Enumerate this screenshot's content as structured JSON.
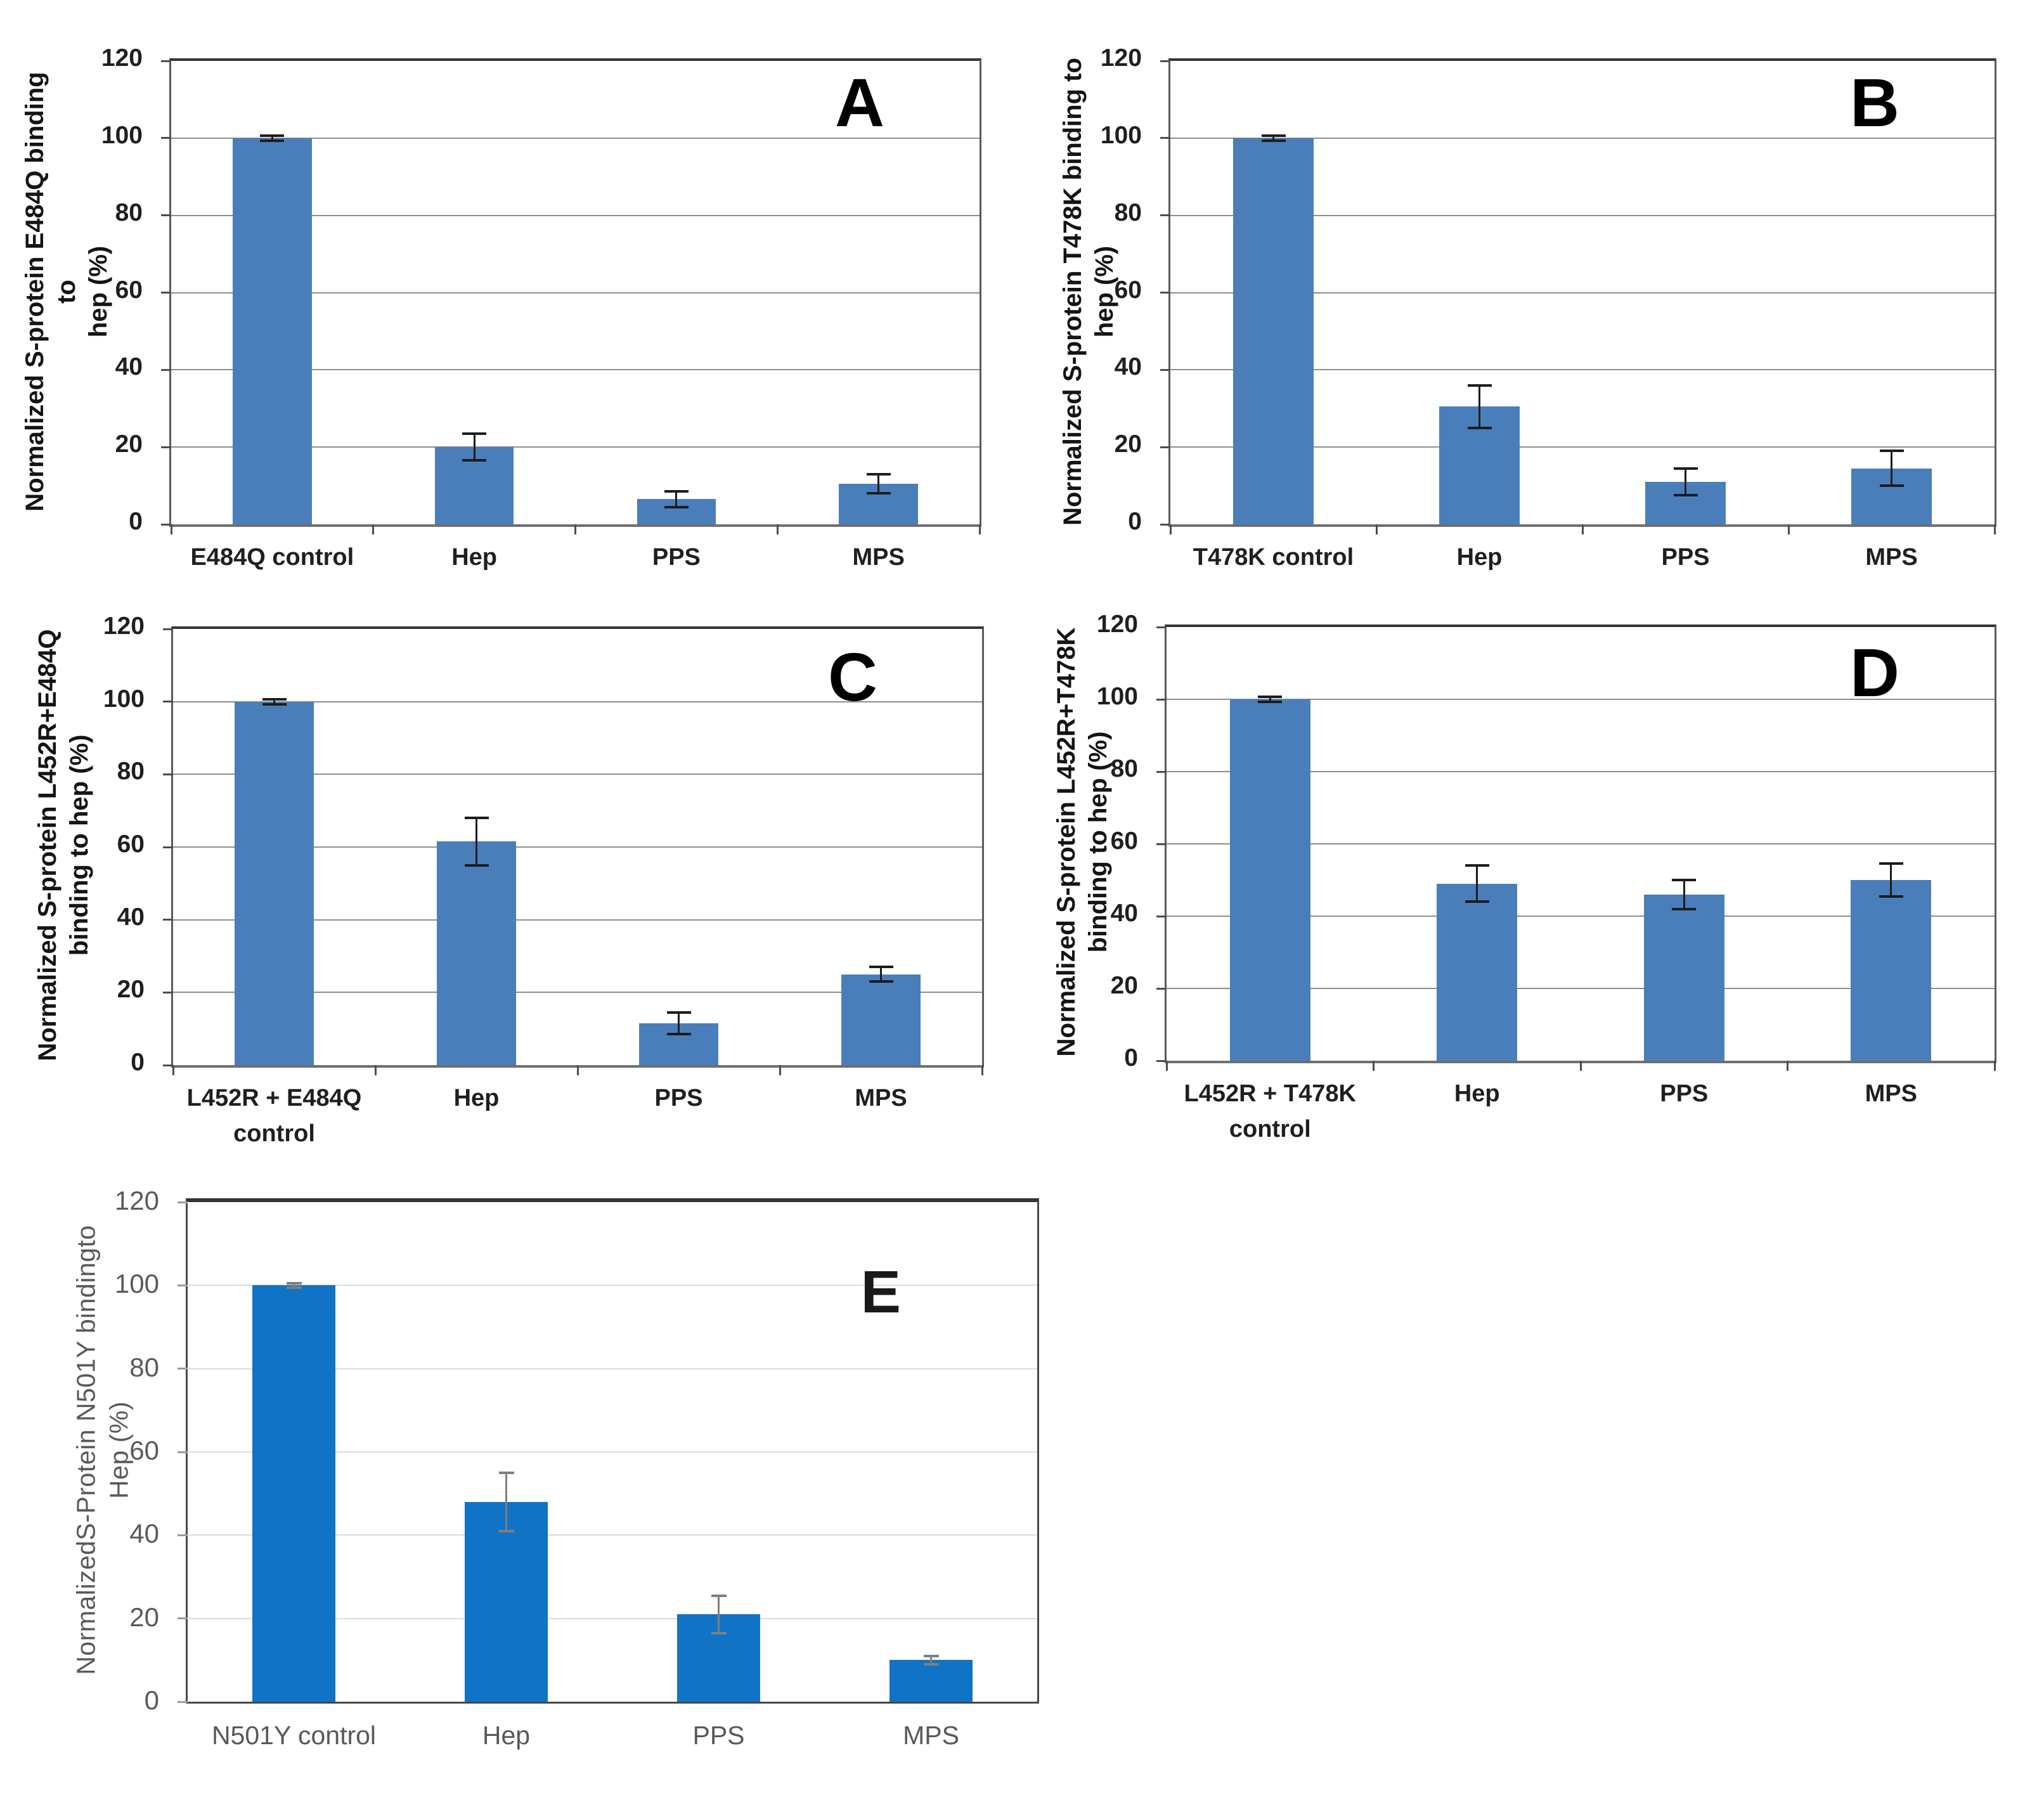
{
  "chart_data": [
    {
      "id": "A",
      "type": "bar",
      "panel_label": "A",
      "ylabel": "Normalized S-protein E484Q binding to hep (%)",
      "ylabel_lines": [
        "Normalized S-protein E484Q binding to",
        "hep (%)"
      ],
      "categories": [
        "E484Q control",
        "Hep",
        "PPS",
        "MPS"
      ],
      "values": [
        100,
        20,
        6.5,
        10.5
      ],
      "errors": [
        0.7,
        3.5,
        2,
        2.5
      ],
      "ylim": [
        0,
        120
      ],
      "yticks": [
        0,
        20,
        40,
        60,
        80,
        100,
        120
      ],
      "grid": true,
      "legend": "none",
      "style": "classic"
    },
    {
      "id": "B",
      "type": "bar",
      "panel_label": "B",
      "ylabel": "Normalized S-protein T478K binding to hep (%)",
      "ylabel_lines": [
        "Normalized S-protein T478K  binding to",
        "hep (%)"
      ],
      "categories": [
        "T478K control",
        "Hep",
        "PPS",
        "MPS"
      ],
      "values": [
        100,
        30.5,
        11,
        14.5
      ],
      "errors": [
        0.7,
        5.5,
        3.5,
        4.5
      ],
      "ylim": [
        0,
        120
      ],
      "yticks": [
        0,
        20,
        40,
        60,
        80,
        100,
        120
      ],
      "grid": true,
      "legend": "none",
      "style": "classic"
    },
    {
      "id": "C",
      "type": "bar",
      "panel_label": "C",
      "ylabel": "Normalized S-protein L452R+E484Q binding to hep (%)",
      "ylabel_lines": [
        "Normalized S-protein L452R+E484Q",
        "binding to hep (%)"
      ],
      "categories": [
        "L452R + E484Q\ncontrol",
        "Hep",
        "PPS",
        "MPS"
      ],
      "values": [
        100,
        61.5,
        11.5,
        25
      ],
      "errors": [
        0.7,
        6.5,
        3,
        2
      ],
      "ylim": [
        0,
        120
      ],
      "yticks": [
        0,
        20,
        40,
        60,
        80,
        100,
        120
      ],
      "grid": true,
      "legend": "none",
      "style": "classic"
    },
    {
      "id": "D",
      "type": "bar",
      "panel_label": "D",
      "ylabel": "Normalized S-protein L452R+T478K binding to hep (%)",
      "ylabel_lines": [
        "Normalized S-protein  L452R+T478K",
        "binding to hep (%)"
      ],
      "categories": [
        "L452R + T478K\ncontrol",
        "Hep",
        "PPS",
        "MPS"
      ],
      "values": [
        100,
        49,
        46,
        50
      ],
      "errors": [
        0.7,
        5,
        4,
        4.5
      ],
      "ylim": [
        0,
        120
      ],
      "yticks": [
        0,
        20,
        40,
        60,
        80,
        100,
        120
      ],
      "grid": true,
      "legend": "none",
      "style": "classic"
    },
    {
      "id": "E",
      "type": "bar",
      "panel_label": "E",
      "ylabel": "NormalizedS-Protein N501Y  bindingto Hep (%)",
      "ylabel_lines": [
        "NormalizedS-Protein N501Y  bindingto",
        "Hep (%)"
      ],
      "categories": [
        "N501Y control",
        "Hep",
        "PPS",
        "MPS"
      ],
      "values": [
        100,
        48,
        21,
        10
      ],
      "errors": [
        0.5,
        7,
        4.5,
        1
      ],
      "ylim": [
        0,
        120
      ],
      "yticks": [
        0,
        20,
        40,
        60,
        80,
        100,
        120
      ],
      "grid": true,
      "legend": "none",
      "style": "modern"
    }
  ],
  "styles": {
    "classic": {
      "bar_color": "#4a7ebb",
      "grid_color": "#8e8e8e",
      "text_color": "#1f1f1f",
      "error_color": "#1c1c1c",
      "tick_color": "#4d4d4d",
      "border_color": "#5a5a5a"
    },
    "modern": {
      "bar_color": "#1173c5",
      "grid_color": "#dcdcdc",
      "text_color": "#595959",
      "error_color": "#7f7f7f",
      "tick_color": "#9a9a9a",
      "border_color": "#474747"
    }
  }
}
